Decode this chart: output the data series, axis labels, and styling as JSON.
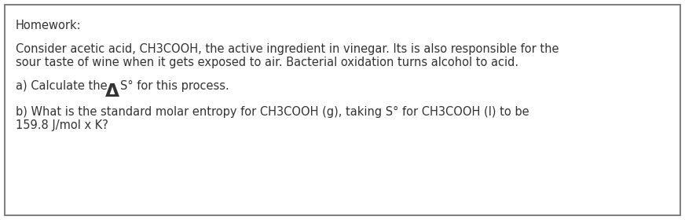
{
  "title": "Homework:",
  "bg_color": "#ffffff",
  "border_color": "#666666",
  "text_color": "#333333",
  "font_size": 10.5,
  "line1": "Consider acetic acid, CH3COOH, the active ingredient in vinegar. Its is also responsible for the",
  "line2": "sour taste of wine when it gets exposed to air. Bacterial oxidation turns alcohol to acid.",
  "line_a_prefix": "a) Calculate the ",
  "line_a_suffix": "S° for this process.",
  "line_b1": "b) What is the standard molar entropy for CH3COOH (g), taking S° for CH3COOH (l) to be",
  "line_b2": "159.8 J/mol x K?"
}
